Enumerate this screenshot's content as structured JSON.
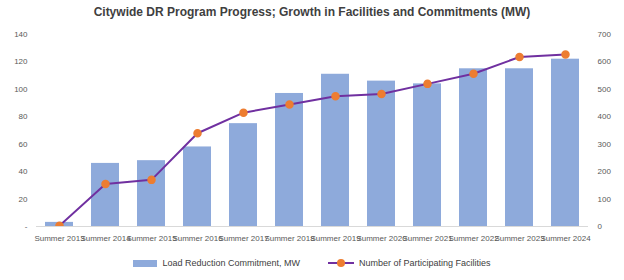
{
  "chart_data": {
    "type": "bar",
    "title": "Citywide DR Program Progress; Growth in Facilities and Commitments (MW)",
    "categories": [
      "Summer 2013",
      "Summer 2014",
      "Summer 2015",
      "Summer 2016",
      "Summer 2017",
      "Summer 2018",
      "Summer 2019",
      "Summer 2020",
      "Summer 2021",
      "Summer 2022",
      "Summer 2023",
      "Summer 2024"
    ],
    "series": [
      {
        "name": "Load Reduction Commitment, MW",
        "type": "bar",
        "color": "#8eaadb",
        "values": [
          3,
          46,
          48,
          58,
          75,
          97,
          111,
          106,
          104,
          115,
          115,
          122
        ]
      },
      {
        "name": "Number of Participating Facilities",
        "type": "line",
        "axis": "y2",
        "color": "#7030a0",
        "marker": "circle",
        "values": [
          3,
          155,
          170,
          340,
          415,
          445,
          475,
          483,
          520,
          557,
          618,
          627
        ]
      }
    ],
    "ylim": [
      0,
      140
    ],
    "yticks": [
      {
        "value": 0,
        "label": "-"
      },
      20,
      40,
      60,
      80,
      100,
      120,
      140
    ],
    "y2lim": [
      0,
      700
    ],
    "y2ticks": [
      0,
      100,
      200,
      300,
      400,
      500,
      600,
      700
    ],
    "grid": false,
    "legend": "bottom"
  }
}
